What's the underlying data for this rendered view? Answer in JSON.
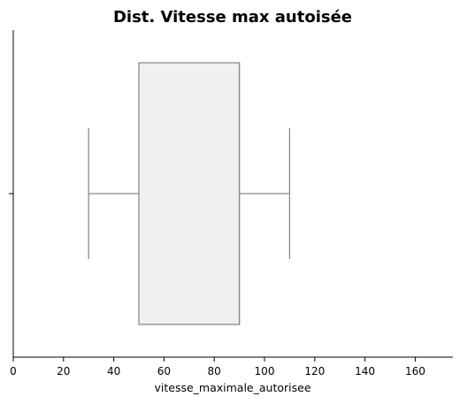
{
  "chart_data": {
    "type": "box",
    "title": "Dist. Vitesse max autoisée",
    "xlabel": "vitesse_maximale_autorisee",
    "ylabel": "",
    "xlim": [
      0,
      175
    ],
    "xticks": [
      0,
      20,
      40,
      60,
      80,
      100,
      120,
      140,
      160
    ],
    "xtick_labels": [
      "0",
      "20",
      "40",
      "60",
      "80",
      "100",
      "120",
      "140",
      "160"
    ],
    "box": {
      "whisker_low": 30,
      "q1": 50,
      "median": 90,
      "q3": 90,
      "whisker_high": 110
    },
    "orientation": "horizontal",
    "grid": false,
    "colors": {
      "box_fill": "#f0f0f0",
      "box_edge": "#8c8c8c",
      "axis": "#000000"
    }
  }
}
